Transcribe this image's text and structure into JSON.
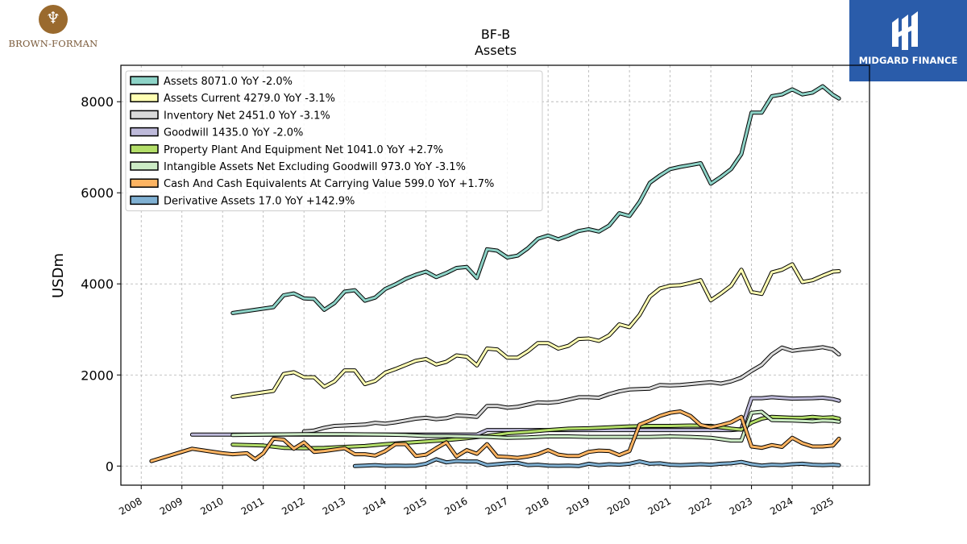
{
  "header": {
    "left_logo_text": "BROWN-FORMAN",
    "right_logo_text": "MIDGARD FINANCE"
  },
  "chart_data": {
    "type": "line",
    "title": "BF-B",
    "subtitle": "Assets",
    "xlabel": "",
    "ylabel": "USDm",
    "ylim": [
      -420,
      8800
    ],
    "xlim": [
      2007.5,
      2025.9
    ],
    "yticks": [
      0,
      2000,
      4000,
      6000,
      8000
    ],
    "xticks": [
      2008,
      2009,
      2010,
      2011,
      2012,
      2013,
      2014,
      2015,
      2016,
      2017,
      2018,
      2019,
      2020,
      2021,
      2022,
      2023,
      2024,
      2025
    ],
    "grid": true,
    "legend_position": "top-left",
    "series": [
      {
        "name": "Assets",
        "legend": "Assets  8071.0 YoY -2.0%",
        "color": "#8dd3c7",
        "x": [
          2010.25,
          2011.25,
          2011.5,
          2011.75,
          2012.0,
          2012.25,
          2012.5,
          2012.75,
          2013.0,
          2013.25,
          2013.5,
          2013.75,
          2014.0,
          2014.25,
          2014.5,
          2014.75,
          2015.0,
          2015.25,
          2015.5,
          2015.75,
          2016.0,
          2016.25,
          2016.5,
          2016.75,
          2017.0,
          2017.25,
          2017.5,
          2017.75,
          2018.0,
          2018.25,
          2018.5,
          2018.75,
          2019.0,
          2019.25,
          2019.5,
          2019.75,
          2020.0,
          2020.25,
          2020.5,
          2020.75,
          2021.0,
          2021.25,
          2021.5,
          2021.75,
          2022.0,
          2022.25,
          2022.5,
          2022.75,
          2023.0,
          2023.25,
          2023.5,
          2023.75,
          2024.0,
          2024.25,
          2024.5,
          2024.75,
          2025.0,
          2025.15
        ],
        "values": [
          3360,
          3490,
          3750,
          3790,
          3680,
          3670,
          3430,
          3580,
          3830,
          3860,
          3630,
          3700,
          3890,
          3990,
          4110,
          4200,
          4270,
          4150,
          4240,
          4350,
          4370,
          4130,
          4760,
          4730,
          4580,
          4620,
          4780,
          4990,
          5060,
          4980,
          5060,
          5160,
          5200,
          5150,
          5280,
          5550,
          5490,
          5800,
          6220,
          6380,
          6520,
          6570,
          6610,
          6650,
          6200,
          6350,
          6520,
          6850,
          7760,
          7760,
          8120,
          8160,
          8270,
          8160,
          8200,
          8340,
          8150,
          8071
        ]
      },
      {
        "name": "Assets Current",
        "legend": "Assets Current  4279.0 YoY -3.1%",
        "color": "#ffffb3",
        "x": [
          2010.25,
          2011.25,
          2011.5,
          2011.75,
          2012.0,
          2012.25,
          2012.5,
          2012.75,
          2013.0,
          2013.25,
          2013.5,
          2013.75,
          2014.0,
          2014.25,
          2014.5,
          2014.75,
          2015.0,
          2015.25,
          2015.5,
          2015.75,
          2016.0,
          2016.25,
          2016.5,
          2016.75,
          2017.0,
          2017.25,
          2017.5,
          2017.75,
          2018.0,
          2018.25,
          2018.5,
          2018.75,
          2019.0,
          2019.25,
          2019.5,
          2019.75,
          2020.0,
          2020.25,
          2020.5,
          2020.75,
          2021.0,
          2021.25,
          2021.5,
          2021.75,
          2022.0,
          2022.25,
          2022.5,
          2022.75,
          2023.0,
          2023.25,
          2023.5,
          2023.75,
          2024.0,
          2024.25,
          2024.5,
          2024.75,
          2025.0,
          2025.15
        ],
        "values": [
          1520,
          1650,
          2020,
          2060,
          1950,
          1950,
          1740,
          1860,
          2100,
          2100,
          1800,
          1870,
          2050,
          2130,
          2220,
          2310,
          2350,
          2230,
          2290,
          2430,
          2400,
          2210,
          2580,
          2560,
          2380,
          2380,
          2520,
          2700,
          2700,
          2580,
          2640,
          2790,
          2800,
          2750,
          2870,
          3110,
          3050,
          3320,
          3720,
          3900,
          3960,
          3970,
          4020,
          4080,
          3640,
          3790,
          3960,
          4310,
          3820,
          3780,
          4250,
          4310,
          4430,
          4040,
          4080,
          4180,
          4270,
          4279
        ]
      },
      {
        "name": "Inventory Net",
        "legend": "Inventory Net  2451.0 YoY -3.1%",
        "color": "#d9d9d9",
        "x": [
          2012.0,
          2012.25,
          2012.5,
          2012.75,
          2013.0,
          2013.25,
          2013.5,
          2013.75,
          2014.0,
          2014.25,
          2014.5,
          2014.75,
          2015.0,
          2015.25,
          2015.5,
          2015.75,
          2016.0,
          2016.25,
          2016.5,
          2016.75,
          2017.0,
          2017.25,
          2017.5,
          2017.75,
          2018.0,
          2018.25,
          2018.5,
          2018.75,
          2019.0,
          2019.25,
          2019.5,
          2019.75,
          2020.0,
          2020.25,
          2020.5,
          2020.75,
          2021.0,
          2021.25,
          2021.5,
          2021.75,
          2022.0,
          2022.25,
          2022.5,
          2022.75,
          2023.0,
          2023.25,
          2023.5,
          2023.75,
          2024.0,
          2024.25,
          2024.5,
          2024.75,
          2025.0,
          2025.15
        ],
        "values": [
          760,
          780,
          840,
          880,
          890,
          900,
          910,
          950,
          930,
          960,
          1000,
          1040,
          1060,
          1030,
          1050,
          1110,
          1100,
          1080,
          1320,
          1320,
          1280,
          1300,
          1350,
          1400,
          1390,
          1410,
          1460,
          1510,
          1510,
          1500,
          1580,
          1640,
          1680,
          1690,
          1700,
          1780,
          1770,
          1780,
          1800,
          1820,
          1840,
          1810,
          1860,
          1940,
          2090,
          2220,
          2450,
          2600,
          2530,
          2560,
          2580,
          2610,
          2560,
          2451
        ]
      },
      {
        "name": "Goodwill",
        "legend": "Goodwill  1435.0 YoY -2.0%",
        "color": "#bebada",
        "x": [
          2009.25,
          2010.25,
          2011.25,
          2012.25,
          2013.25,
          2014.25,
          2015.25,
          2016.25,
          2016.5,
          2017.0,
          2018.0,
          2019.0,
          2020.0,
          2021.0,
          2022.0,
          2022.5,
          2022.75,
          2023.0,
          2023.25,
          2023.5,
          2024.0,
          2024.5,
          2024.75,
          2025.0,
          2025.15
        ],
        "values": [
          690,
          690,
          690,
          690,
          690,
          690,
          690,
          690,
          790,
          790,
          790,
          790,
          790,
          790,
          790,
          790,
          810,
          1490,
          1490,
          1510,
          1480,
          1490,
          1500,
          1470,
          1435
        ]
      },
      {
        "name": "Property Plant And Equipment Net",
        "legend": "Property Plant And Equipment Net  1041.0 YoY +2.7%",
        "color": "#b3de69",
        "x": [
          2010.25,
          2011.0,
          2011.5,
          2012.0,
          2012.5,
          2013.0,
          2013.5,
          2014.0,
          2014.5,
          2015.0,
          2015.5,
          2016.0,
          2016.5,
          2017.0,
          2017.5,
          2018.0,
          2018.5,
          2019.0,
          2019.5,
          2020.0,
          2020.5,
          2021.0,
          2021.5,
          2022.0,
          2022.5,
          2022.75,
          2023.0,
          2023.25,
          2023.5,
          2024.0,
          2024.25,
          2024.5,
          2024.75,
          2025.0,
          2025.15
        ],
        "values": [
          470,
          450,
          400,
          390,
          400,
          420,
          440,
          480,
          510,
          540,
          570,
          610,
          660,
          720,
          750,
          790,
          820,
          830,
          850,
          870,
          880,
          880,
          890,
          880,
          820,
          800,
          950,
          1040,
          1080,
          1060,
          1060,
          1080,
          1060,
          1070,
          1041
        ]
      },
      {
        "name": "Intangible Assets Net Excluding Goodwill",
        "legend": "Intangible Assets Net Excluding Goodwill  973.0 YoY -3.1%",
        "color": "#ccebc5",
        "x": [
          2010.25,
          2011.0,
          2012.0,
          2013.0,
          2014.0,
          2014.5,
          2015.0,
          2015.5,
          2016.0,
          2016.5,
          2017.0,
          2017.5,
          2018.0,
          2018.5,
          2019.0,
          2019.5,
          2020.0,
          2020.5,
          2021.0,
          2021.5,
          2022.0,
          2022.25,
          2022.5,
          2022.75,
          2023.0,
          2023.25,
          2023.5,
          2024.0,
          2024.5,
          2024.75,
          2025.0,
          2025.15
        ],
        "values": [
          680,
          690,
          700,
          700,
          690,
          680,
          660,
          660,
          650,
          640,
          620,
          630,
          650,
          650,
          640,
          640,
          640,
          640,
          650,
          640,
          620,
          590,
          560,
          560,
          1170,
          1190,
          1010,
          1000,
          980,
          1000,
          990,
          973
        ]
      },
      {
        "name": "Cash And Cash Equivalents At Carrying Value",
        "legend": "Cash And Cash Equivalents At Carrying Value  599.0 YoY +1.7%",
        "color": "#fdb462",
        "x": [
          2008.25,
          2009.25,
          2010.0,
          2010.25,
          2010.6,
          2010.8,
          2011.0,
          2011.25,
          2011.5,
          2011.75,
          2012.0,
          2012.25,
          2012.5,
          2013.0,
          2013.25,
          2013.5,
          2013.75,
          2014.0,
          2014.25,
          2014.5,
          2014.75,
          2015.0,
          2015.25,
          2015.5,
          2015.75,
          2016.0,
          2016.25,
          2016.5,
          2016.75,
          2017.0,
          2017.25,
          2017.5,
          2017.75,
          2018.0,
          2018.25,
          2018.5,
          2018.75,
          2019.0,
          2019.25,
          2019.5,
          2019.75,
          2020.0,
          2020.25,
          2020.5,
          2020.75,
          2021.0,
          2021.25,
          2021.5,
          2021.75,
          2022.0,
          2022.25,
          2022.5,
          2022.75,
          2023.0,
          2023.25,
          2023.5,
          2023.75,
          2024.0,
          2024.25,
          2024.5,
          2024.75,
          2025.0,
          2025.15
        ],
        "values": [
          110,
          380,
          280,
          260,
          280,
          150,
          280,
          600,
          580,
          380,
          520,
          310,
          330,
          390,
          260,
          260,
          230,
          330,
          480,
          480,
          220,
          250,
          390,
          520,
          210,
          350,
          270,
          480,
          210,
          200,
          180,
          210,
          260,
          350,
          250,
          220,
          220,
          310,
          340,
          330,
          240,
          330,
          910,
          1000,
          1100,
          1170,
          1200,
          1100,
          900,
          850,
          900,
          960,
          1080,
          430,
          400,
          460,
          420,
          620,
          500,
          430,
          430,
          450,
          599
        ]
      },
      {
        "name": "Derivative Assets",
        "legend": "Derivative Assets  17.0 YoY +142.9%",
        "color": "#80b1d3",
        "x": [
          2013.25,
          2013.5,
          2013.75,
          2014.0,
          2014.25,
          2014.5,
          2014.75,
          2015.0,
          2015.25,
          2015.5,
          2015.75,
          2016.0,
          2016.25,
          2016.5,
          2016.75,
          2017.0,
          2017.25,
          2017.5,
          2017.75,
          2018.0,
          2018.25,
          2018.5,
          2018.75,
          2019.0,
          2019.25,
          2019.5,
          2019.75,
          2020.0,
          2020.25,
          2020.5,
          2020.75,
          2021.0,
          2021.25,
          2021.5,
          2021.75,
          2022.0,
          2022.25,
          2022.5,
          2022.75,
          2023.0,
          2023.25,
          2023.5,
          2023.75,
          2024.0,
          2024.25,
          2024.5,
          2024.75,
          2025.0,
          2025.15
        ],
        "values": [
          0,
          10,
          20,
          5,
          10,
          5,
          10,
          50,
          150,
          80,
          110,
          100,
          100,
          20,
          40,
          60,
          70,
          20,
          30,
          10,
          5,
          10,
          0,
          50,
          20,
          40,
          30,
          50,
          100,
          50,
          60,
          30,
          20,
          30,
          40,
          30,
          50,
          60,
          90,
          40,
          10,
          30,
          20,
          40,
          50,
          30,
          20,
          30,
          17
        ]
      }
    ]
  }
}
